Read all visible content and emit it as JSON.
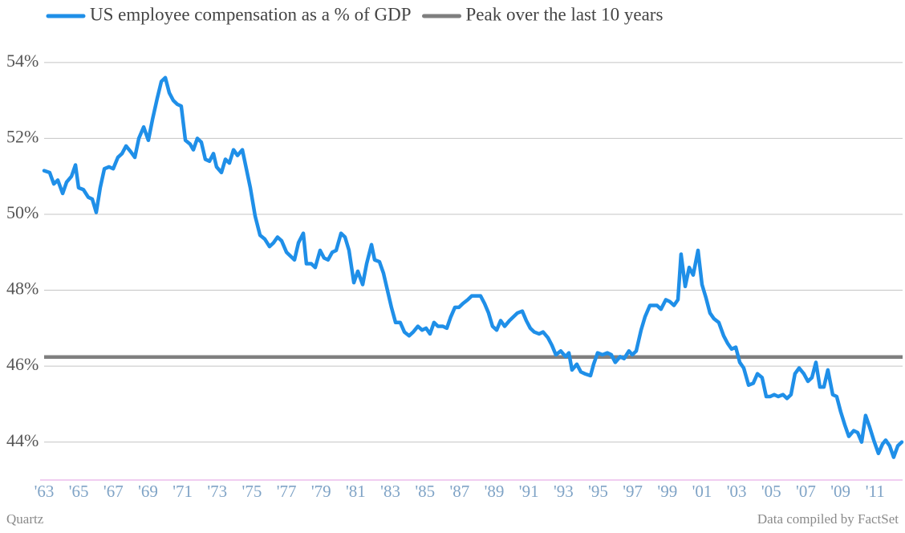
{
  "chart_data": {
    "type": "line",
    "legend": "top-left",
    "grid": true,
    "credit": "Quartz",
    "source": "Data compiled by FactSet",
    "xlim": [
      1963,
      2012.54
    ],
    "ylim": [
      43,
      54.8
    ],
    "yticks": [
      {
        "value": 44,
        "label": "44%"
      },
      {
        "value": 46,
        "label": "46%"
      },
      {
        "value": 48,
        "label": "48%"
      },
      {
        "value": 50,
        "label": "50%"
      },
      {
        "value": 52,
        "label": "52%"
      },
      {
        "value": 54,
        "label": "54%"
      }
    ],
    "xticks": [
      {
        "value": 1963,
        "label": "'63"
      },
      {
        "value": 1965,
        "label": "'65"
      },
      {
        "value": 1967,
        "label": "'67"
      },
      {
        "value": 1969,
        "label": "'69"
      },
      {
        "value": 1971,
        "label": "'71"
      },
      {
        "value": 1973,
        "label": "'73"
      },
      {
        "value": 1975,
        "label": "'75"
      },
      {
        "value": 1977,
        "label": "'77"
      },
      {
        "value": 1979,
        "label": "'79"
      },
      {
        "value": 1981,
        "label": "'81"
      },
      {
        "value": 1983,
        "label": "'83"
      },
      {
        "value": 1985,
        "label": "'85"
      },
      {
        "value": 1987,
        "label": "'87"
      },
      {
        "value": 1989,
        "label": "'89"
      },
      {
        "value": 1991,
        "label": "'91"
      },
      {
        "value": 1993,
        "label": "'93"
      },
      {
        "value": 1995,
        "label": "'95"
      },
      {
        "value": 1997,
        "label": "'97"
      },
      {
        "value": 1999,
        "label": "'99"
      },
      {
        "value": 2001,
        "label": "'01"
      },
      {
        "value": 2003,
        "label": "'03"
      },
      {
        "value": 2005,
        "label": "'05"
      },
      {
        "value": 2007,
        "label": "'07"
      },
      {
        "value": 2009,
        "label": "'09"
      },
      {
        "value": 2011,
        "label": "'11"
      }
    ],
    "series": [
      {
        "name": "US employee compensation as a % of GDP",
        "color": "#1f8fe8",
        "x": [
          1963.0,
          1963.32,
          1963.56,
          1963.79,
          1964.07,
          1964.3,
          1964.58,
          1964.81,
          1964.99,
          1965.27,
          1965.55,
          1965.78,
          1966.01,
          1966.24,
          1966.48,
          1966.75,
          1966.99,
          1967.26,
          1967.5,
          1967.73,
          1968.0,
          1968.24,
          1968.47,
          1968.75,
          1969.02,
          1969.26,
          1969.53,
          1969.77,
          1970.0,
          1970.23,
          1970.46,
          1970.69,
          1970.92,
          1971.16,
          1971.43,
          1971.62,
          1971.85,
          1972.08,
          1972.31,
          1972.55,
          1972.78,
          1972.96,
          1973.24,
          1973.47,
          1973.7,
          1973.94,
          1974.17,
          1974.45,
          1974.68,
          1974.91,
          1975.19,
          1975.47,
          1975.74,
          1976.02,
          1976.25,
          1976.48,
          1976.72,
          1977.0,
          1977.23,
          1977.46,
          1977.69,
          1977.97,
          1978.15,
          1978.43,
          1978.66,
          1978.94,
          1979.17,
          1979.4,
          1979.64,
          1979.87,
          1980.15,
          1980.38,
          1980.61,
          1980.89,
          1981.12,
          1981.4,
          1981.63,
          1981.91,
          1982.09,
          1982.37,
          1982.6,
          1982.83,
          1983.06,
          1983.3,
          1983.57,
          1983.81,
          1984.08,
          1984.32,
          1984.59,
          1984.83,
          1985.06,
          1985.29,
          1985.52,
          1985.75,
          1986.03,
          1986.26,
          1986.49,
          1986.73,
          1986.96,
          1987.19,
          1987.47,
          1987.7,
          1987.98,
          1988.21,
          1988.44,
          1988.67,
          1988.9,
          1989.14,
          1989.37,
          1989.6,
          1989.88,
          1990.11,
          1990.34,
          1990.62,
          1990.85,
          1991.08,
          1991.31,
          1991.59,
          1991.82,
          1992.1,
          1992.33,
          1992.56,
          1992.84,
          1993.12,
          1993.31,
          1993.49,
          1993.77,
          1994.0,
          1994.23,
          1994.56,
          1994.74,
          1994.97,
          1995.25,
          1995.53,
          1995.76,
          1995.99,
          1996.27,
          1996.5,
          1996.78,
          1996.97,
          1997.2,
          1997.48,
          1997.71,
          1997.99,
          1998.22,
          1998.4,
          1998.63,
          1998.91,
          1999.14,
          1999.38,
          1999.61,
          1999.79,
          2000.03,
          2000.26,
          2000.49,
          2000.77,
          2001.0,
          2001.23,
          2001.46,
          2001.69,
          2001.97,
          2002.25,
          2002.48,
          2002.71,
          2002.95,
          2003.18,
          2003.41,
          2003.69,
          2003.96,
          2004.2,
          2004.47,
          2004.71,
          2004.94,
          2005.17,
          2005.4,
          2005.68,
          2005.91,
          2006.14,
          2006.37,
          2006.61,
          2006.88,
          2007.12,
          2007.35,
          2007.58,
          2007.81,
          2008.04,
          2008.27,
          2008.55,
          2008.78,
          2009.01,
          2009.25,
          2009.48,
          2009.76,
          2009.99,
          2010.22,
          2010.45,
          2010.68,
          2010.92,
          2011.19,
          2011.43,
          2011.61,
          2011.84,
          2012.07,
          2012.31,
          2012.54
        ],
        "values": [
          51.15,
          51.1,
          50.8,
          50.9,
          50.55,
          50.85,
          51.0,
          51.3,
          50.7,
          50.65,
          50.45,
          50.4,
          50.05,
          50.7,
          51.2,
          51.25,
          51.2,
          51.5,
          51.6,
          51.8,
          51.65,
          51.5,
          52.0,
          52.3,
          51.95,
          52.5,
          53.05,
          53.5,
          53.6,
          53.2,
          53.0,
          52.9,
          52.85,
          51.95,
          51.85,
          51.7,
          52.0,
          51.9,
          51.45,
          51.4,
          51.6,
          51.25,
          51.1,
          51.45,
          51.35,
          51.7,
          51.55,
          51.7,
          51.2,
          50.7,
          49.95,
          49.45,
          49.35,
          49.15,
          49.25,
          49.4,
          49.3,
          49.0,
          48.9,
          48.8,
          49.25,
          49.5,
          48.7,
          48.7,
          48.6,
          49.05,
          48.85,
          48.8,
          49.0,
          49.05,
          49.5,
          49.4,
          49.05,
          48.2,
          48.5,
          48.15,
          48.7,
          49.2,
          48.8,
          48.75,
          48.45,
          48.0,
          47.55,
          47.15,
          47.15,
          46.9,
          46.8,
          46.9,
          47.05,
          46.95,
          47.0,
          46.85,
          47.15,
          47.05,
          47.05,
          47.0,
          47.3,
          47.55,
          47.55,
          47.65,
          47.75,
          47.85,
          47.85,
          47.85,
          47.65,
          47.4,
          47.05,
          46.95,
          47.2,
          47.05,
          47.2,
          47.3,
          47.4,
          47.45,
          47.2,
          47.0,
          46.9,
          46.85,
          46.9,
          46.75,
          46.55,
          46.3,
          46.4,
          46.25,
          46.35,
          45.9,
          46.05,
          45.85,
          45.8,
          45.75,
          46.05,
          46.35,
          46.3,
          46.35,
          46.3,
          46.1,
          46.25,
          46.2,
          46.4,
          46.3,
          46.4,
          46.95,
          47.3,
          47.6,
          47.6,
          47.6,
          47.5,
          47.75,
          47.7,
          47.6,
          47.75,
          48.95,
          48.1,
          48.6,
          48.4,
          49.05,
          48.15,
          47.8,
          47.4,
          47.25,
          47.15,
          46.8,
          46.6,
          46.45,
          46.5,
          46.1,
          45.95,
          45.5,
          45.55,
          45.8,
          45.7,
          45.2,
          45.2,
          45.25,
          45.2,
          45.25,
          45.15,
          45.25,
          45.8,
          45.95,
          45.8,
          45.6,
          45.7,
          46.1,
          45.45,
          45.45,
          45.9,
          45.25,
          45.2,
          44.8,
          44.45,
          44.15,
          44.3,
          44.25,
          44.0,
          44.7,
          44.4,
          44.05,
          43.7,
          43.95,
          44.05,
          43.9,
          43.6,
          43.9,
          44.0
        ]
      }
    ],
    "reference_line": {
      "name": "Peak over the last 10 years",
      "color": "#7f7f7f",
      "value": 46.24
    }
  }
}
